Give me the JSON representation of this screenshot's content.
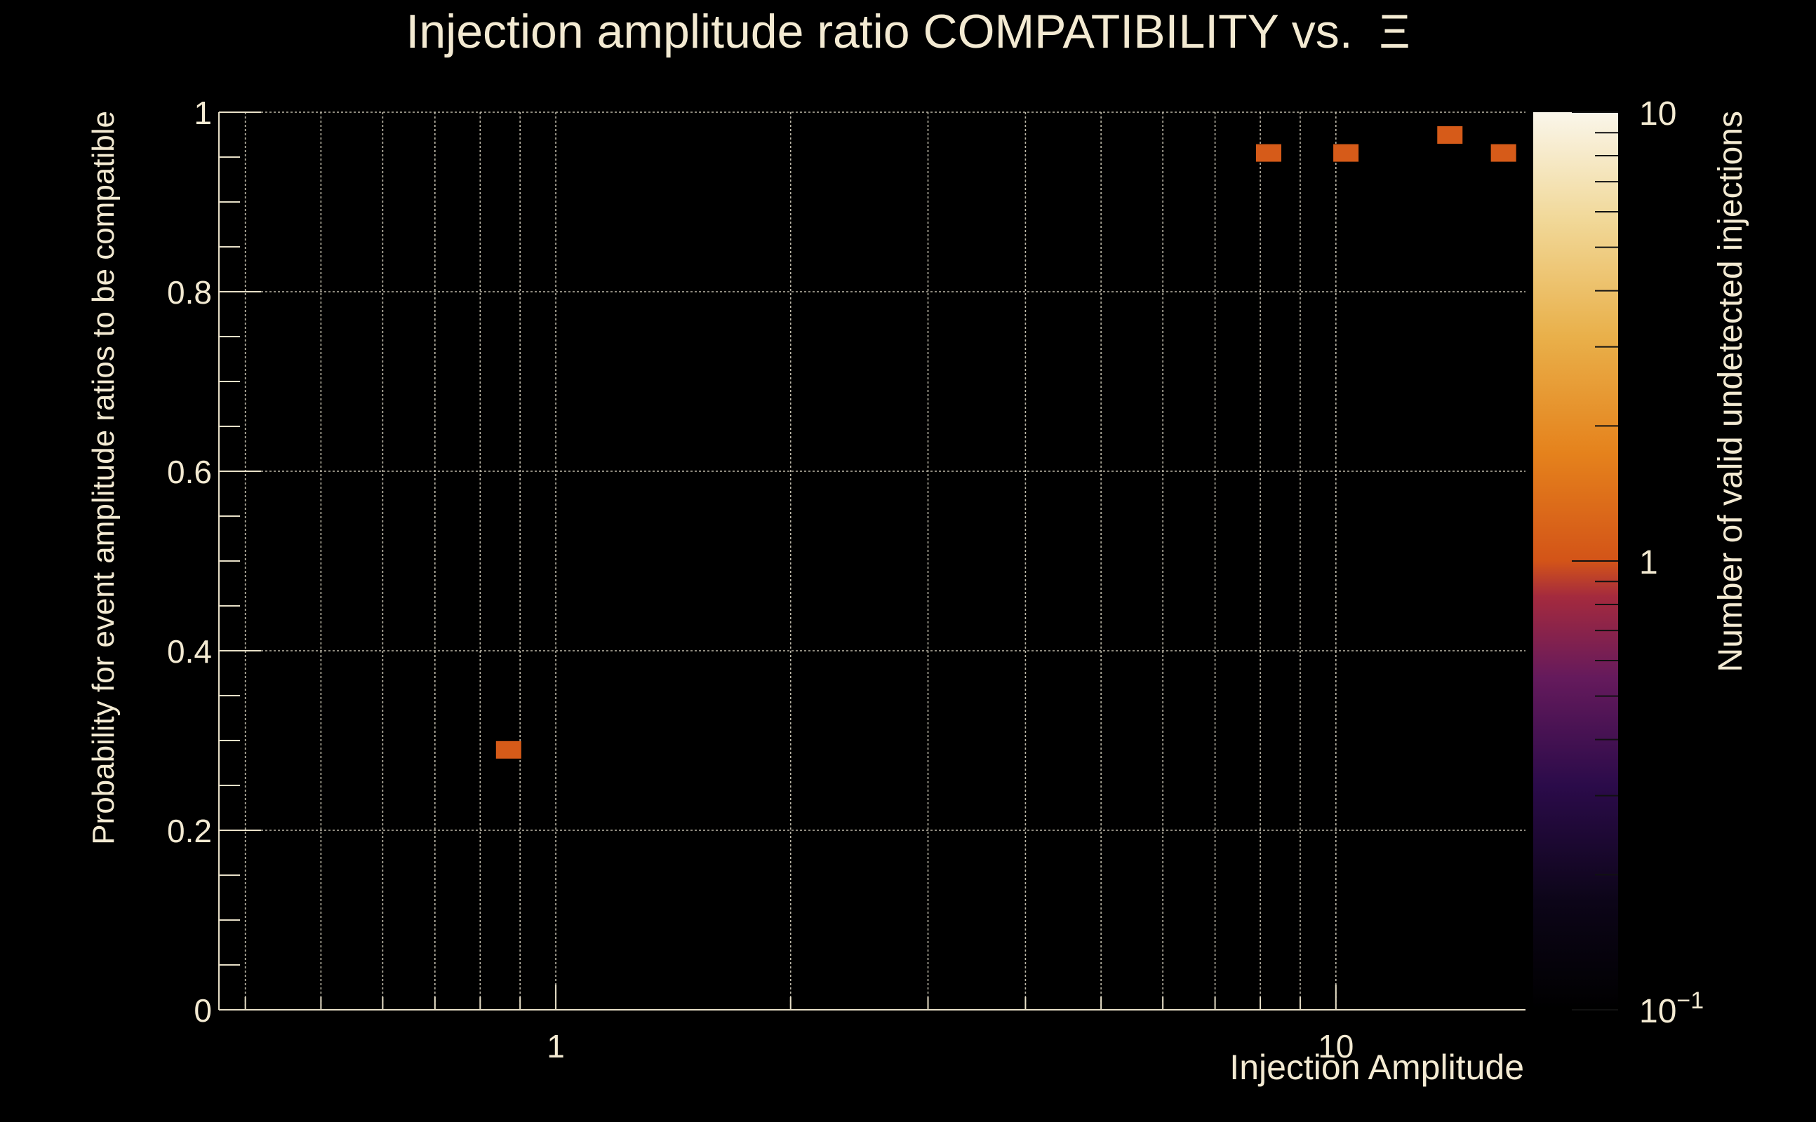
{
  "chart_data": {
    "type": "heatmap",
    "title": "Injection amplitude ratio COMPATIBILITY vs.  Ξ",
    "xlabel": "Injection Amplitude",
    "ylabel": "Probability for event amplitude ratios to be compatible",
    "zlabel": "Number of valid undetected injections",
    "xscale": "log",
    "xlim": [
      0.37,
      17.5
    ],
    "ylim": [
      0,
      1
    ],
    "zscale": "log",
    "zlim": [
      0.1,
      10
    ],
    "grid": true,
    "x_ticks": [
      {
        "value": 1,
        "label": "1"
      },
      {
        "value": 10,
        "label": "10"
      }
    ],
    "y_ticks": [
      {
        "value": 0,
        "label": "0"
      },
      {
        "value": 0.2,
        "label": "0.2"
      },
      {
        "value": 0.4,
        "label": "0.4"
      },
      {
        "value": 0.6,
        "label": "0.6"
      },
      {
        "value": 0.8,
        "label": "0.8"
      },
      {
        "value": 1,
        "label": "1"
      }
    ],
    "z_ticks": [
      {
        "value": 0.1,
        "label": "10",
        "exp": "−1"
      },
      {
        "value": 1,
        "label": "1",
        "exp": ""
      },
      {
        "value": 10,
        "label": "10",
        "exp": ""
      }
    ],
    "cells": [
      {
        "x": 0.87,
        "y": 0.29,
        "z": 1
      },
      {
        "x": 8.2,
        "y": 0.955,
        "z": 1
      },
      {
        "x": 10.3,
        "y": 0.955,
        "z": 1
      },
      {
        "x": 14.0,
        "y": 0.975,
        "z": 1
      },
      {
        "x": 16.4,
        "y": 0.955,
        "z": 1
      }
    ],
    "colors": {
      "background": "#000000",
      "text": "#f3ead2",
      "axis": "#e8e0c8",
      "grid": "#bdb8a8",
      "colormap": [
        "#000004",
        "#1b0c41",
        "#4a0c6b",
        "#781c6d",
        "#a52c60",
        "#cf4446",
        "#ed6925",
        "#fb9b06",
        "#f7d13d",
        "#fcffa4"
      ]
    }
  }
}
